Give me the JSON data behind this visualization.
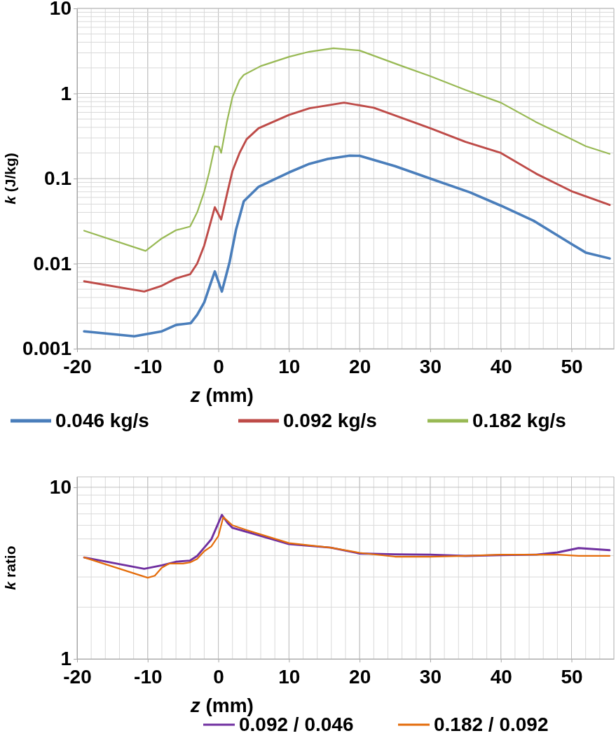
{
  "chart_data": [
    {
      "type": "line",
      "xlabel": "z (mm)",
      "ylabel": "k (J/kg)",
      "log": "y",
      "grid": true,
      "legend": "bottom",
      "marker": "none",
      "line_style": "solid",
      "xlim": [
        -20,
        56
      ],
      "xticks": [
        -20,
        -10,
        0,
        10,
        20,
        30,
        40,
        50
      ],
      "ylim": [
        0.001,
        10
      ],
      "yticks": [
        0.001,
        0.01,
        0.1,
        1,
        10
      ],
      "series": [
        {
          "name": "0.046 kg/s",
          "color": "#4a7ebb",
          "x": [
            -19,
            -11.9,
            -8,
            -6,
            -3.9,
            -3,
            -2,
            -1.2,
            -0.5,
            0.5,
            1.6,
            2.5,
            3.6,
            5.7,
            10,
            12.9,
            15.5,
            18.6,
            20,
            25,
            30,
            35.6,
            40,
            44.6,
            50,
            52,
            55.4
          ],
          "values": [
            0.0016,
            0.0014,
            0.0016,
            0.0019,
            0.002,
            0.0025,
            0.0035,
            0.0055,
            0.0081,
            0.0047,
            0.0105,
            0.025,
            0.054,
            0.08,
            0.118,
            0.149,
            0.17,
            0.186,
            0.185,
            0.14,
            0.1,
            0.069,
            0.048,
            0.032,
            0.017,
            0.0135,
            0.0115
          ]
        },
        {
          "name": "0.092 kg/s",
          "color": "#be4b48",
          "x": [
            -19,
            -10.5,
            -8,
            -6,
            -4,
            -3,
            -2,
            -0.5,
            0.4,
            1.3,
            2,
            3,
            4,
            5.7,
            10,
            12.9,
            17.8,
            22,
            30,
            35,
            40,
            45,
            50,
            55.4
          ],
          "values": [
            0.0062,
            0.0047,
            0.0055,
            0.0067,
            0.0075,
            0.01,
            0.0163,
            0.046,
            0.033,
            0.07,
            0.123,
            0.2,
            0.29,
            0.39,
            0.56,
            0.67,
            0.78,
            0.68,
            0.39,
            0.27,
            0.2,
            0.114,
            0.071,
            0.049
          ]
        },
        {
          "name": "0.182 kg/s",
          "color": "#98b954",
          "x": [
            -19,
            -10.3,
            -8,
            -6,
            -4,
            -3,
            -2,
            -1.3,
            -0.5,
            0.1,
            0.4,
            1.2,
            2,
            3,
            3.6,
            6,
            10,
            12.9,
            16.3,
            20,
            25.8,
            30,
            35,
            40,
            45,
            50,
            52,
            55.4
          ],
          "values": [
            0.0244,
            0.0141,
            0.0198,
            0.0247,
            0.0273,
            0.04,
            0.07,
            0.118,
            0.24,
            0.235,
            0.2,
            0.46,
            0.91,
            1.44,
            1.65,
            2.1,
            2.7,
            3.1,
            3.4,
            3.2,
            2.13,
            1.6,
            1.1,
            0.78,
            0.46,
            0.29,
            0.24,
            0.195
          ]
        }
      ]
    },
    {
      "type": "line",
      "xlabel": "z (mm)",
      "ylabel": "k ratio",
      "log": "y",
      "grid": true,
      "legend": "bottom",
      "marker": "none",
      "line_style": "solid",
      "xlim": [
        -20,
        56
      ],
      "xticks": [
        -20,
        -10,
        0,
        10,
        20,
        30,
        40,
        50
      ],
      "ylim": [
        1,
        11.5
      ],
      "yticks": [
        1,
        10
      ],
      "series": [
        {
          "name": "0.092 / 0.046",
          "color": "#7030a0",
          "x": [
            -19,
            -10.5,
            -8,
            -6,
            -4,
            -3,
            -2,
            -1,
            0.5,
            1.3,
            2,
            4,
            10,
            15.9,
            20,
            25,
            30,
            35,
            40,
            45,
            48,
            51,
            55.4
          ],
          "values": [
            3.9,
            3.35,
            3.51,
            3.68,
            3.74,
            3.98,
            4.45,
            4.97,
            6.9,
            6.2,
            5.8,
            5.5,
            4.66,
            4.45,
            4.11,
            4.07,
            4.05,
            3.98,
            4.02,
            4.05,
            4.17,
            4.42,
            4.3
          ]
        },
        {
          "name": "0.182 / 0.092",
          "color": "#e46c0a",
          "x": [
            -19,
            -10,
            -9,
            -8,
            -7,
            -5,
            -4,
            -3,
            -2,
            -1,
            0,
            0.7,
            2,
            4,
            10,
            15.9,
            20,
            25,
            30,
            35,
            40,
            45,
            48,
            51,
            55.4
          ],
          "values": [
            3.9,
            2.97,
            3.05,
            3.4,
            3.59,
            3.59,
            3.65,
            3.82,
            4.24,
            4.52,
            5.2,
            6.7,
            6.0,
            5.63,
            4.73,
            4.45,
            4.15,
            3.94,
            3.94,
            3.98,
            4.05,
            4.05,
            4.05,
            3.98,
            3.98
          ]
        }
      ]
    }
  ]
}
